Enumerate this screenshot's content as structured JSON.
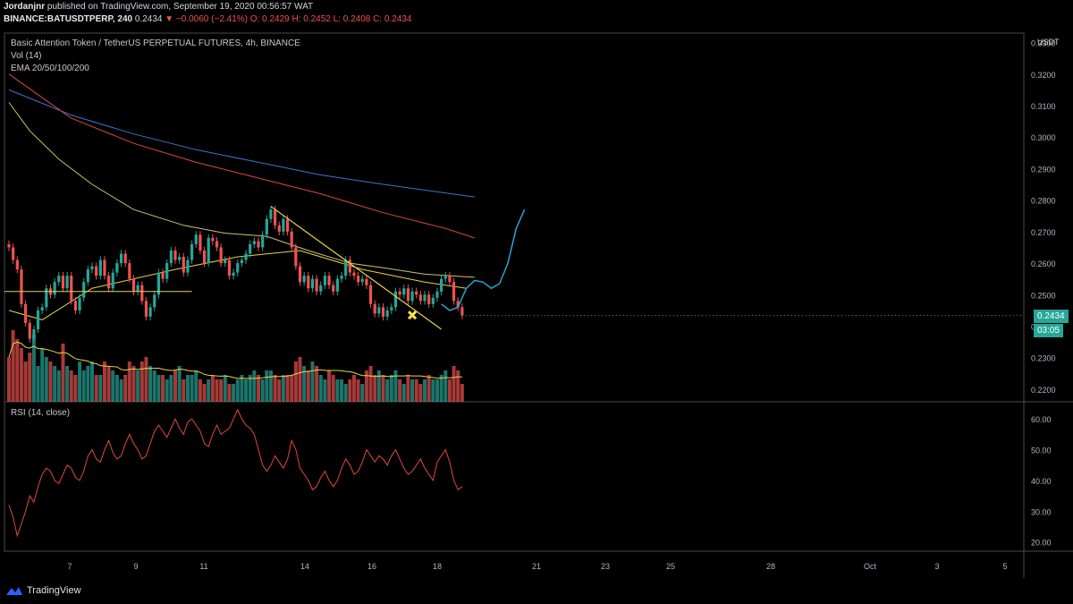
{
  "header": {
    "publisher": "Jordanjnr",
    "published_text": "published on TradingView.com, September 19, 2020 00:56:57 WAT",
    "symbol_line": "BINANCE:BATUSDTPERP, 240",
    "last_price": "0.2434",
    "change": "▼ −0.0060 (−2.41%)",
    "ohlc": "O: 0.2429  H: 0.2452  L: 0.2408  C: 0.2434"
  },
  "legend": {
    "title": "Basic Attention Token / TetherUS PERPETUAL FUTURES, 4h, BINANCE",
    "vol": "Vol (14)",
    "ema": "EMA 20/50/100/200",
    "rsi": "RSI (14, close)"
  },
  "price_axis": {
    "currency": "USDT",
    "ticks": [
      "0.3300",
      "0.3200",
      "0.3100",
      "0.3000",
      "0.2900",
      "0.2800",
      "0.2700",
      "0.2600",
      "0.2500",
      "0.2400",
      "0.2300",
      "0.2200"
    ],
    "last_price_tag": "0.2434",
    "countdown_tag": "03:05"
  },
  "rsi_axis": {
    "ticks": [
      "60.00",
      "50.00",
      "40.00",
      "30.00",
      "20.00"
    ]
  },
  "time_axis": {
    "ticks": [
      "7",
      "9",
      "11",
      "14",
      "16",
      "18",
      "21",
      "23",
      "25",
      "28",
      "Oct",
      "3",
      "5"
    ]
  },
  "footer": {
    "logo_text": "TradingView"
  },
  "colors": {
    "up": "#26a69a",
    "down": "#ef5350",
    "ema20": "#e9d349",
    "ema50": "#cfc174",
    "ema100": "#e2483d",
    "ema200": "#3a78c9",
    "rsi": "#e2483d",
    "projection": "#2aa3d3",
    "trendline": "#e9d349",
    "marker": "#f7e64a"
  },
  "chart_data": {
    "type": "candlestick",
    "title": "Basic Attention Token / TetherUS PERPETUAL FUTURES, 4h, BINANCE",
    "ylim": [
      0.216,
      0.333
    ],
    "rsi_ylim": [
      17,
      65
    ],
    "candles_close": [
      0.265,
      0.261,
      0.258,
      0.247,
      0.241,
      0.236,
      0.239,
      0.245,
      0.246,
      0.252,
      0.25,
      0.254,
      0.256,
      0.252,
      0.256,
      0.248,
      0.245,
      0.249,
      0.254,
      0.258,
      0.259,
      0.256,
      0.261,
      0.256,
      0.252,
      0.257,
      0.26,
      0.263,
      0.26,
      0.255,
      0.251,
      0.253,
      0.248,
      0.243,
      0.246,
      0.25,
      0.257,
      0.255,
      0.26,
      0.264,
      0.261,
      0.262,
      0.257,
      0.261,
      0.266,
      0.269,
      0.264,
      0.26,
      0.268,
      0.267,
      0.265,
      0.26,
      0.261,
      0.256,
      0.257,
      0.26,
      0.261,
      0.263,
      0.266,
      0.267,
      0.265,
      0.269,
      0.274,
      0.277,
      0.272,
      0.27,
      0.274,
      0.27,
      0.265,
      0.259,
      0.254,
      0.256,
      0.252,
      0.255,
      0.251,
      0.253,
      0.256,
      0.253,
      0.251,
      0.255,
      0.256,
      0.261,
      0.257,
      0.256,
      0.254,
      0.255,
      0.253,
      0.247,
      0.244,
      0.246,
      0.243,
      0.245,
      0.246,
      0.251,
      0.25,
      0.252,
      0.248,
      0.251,
      0.25,
      0.248,
      0.25,
      0.247,
      0.249,
      0.251,
      0.255,
      0.256,
      0.254,
      0.248,
      0.246,
      0.2434
    ],
    "volume": [
      1.0,
      1.6,
      1.4,
      1.2,
      0.9,
      1.1,
      1.5,
      0.8,
      1.2,
      1.0,
      0.9,
      0.8,
      0.7,
      1.3,
      0.8,
      0.7,
      0.6,
      0.9,
      0.7,
      0.8,
      0.9,
      0.6,
      0.6,
      0.9,
      0.8,
      0.7,
      0.6,
      0.5,
      0.6,
      0.9,
      0.8,
      0.7,
      0.9,
      1.0,
      0.8,
      0.7,
      0.6,
      0.6,
      0.5,
      0.6,
      0.7,
      0.8,
      0.5,
      0.6,
      0.6,
      0.7,
      0.5,
      0.4,
      0.5,
      0.6,
      0.5,
      0.5,
      0.6,
      0.4,
      0.4,
      0.5,
      0.6,
      0.5,
      0.6,
      0.7,
      0.6,
      0.5,
      0.7,
      0.7,
      0.6,
      0.5,
      0.6,
      0.6,
      0.6,
      0.9,
      1.0,
      0.8,
      0.7,
      0.9,
      0.8,
      0.6,
      0.5,
      0.7,
      0.6,
      0.5,
      0.5,
      0.4,
      0.5,
      0.6,
      0.5,
      0.4,
      0.7,
      0.8,
      0.6,
      0.7,
      0.6,
      0.5,
      0.6,
      0.7,
      0.5,
      0.4,
      0.6,
      0.5,
      0.5,
      0.4,
      0.5,
      0.6,
      0.5,
      0.5,
      0.6,
      0.7,
      0.5,
      0.8,
      0.7,
      0.4
    ],
    "ema20": [
      [
        0,
        0.245
      ],
      [
        8,
        0.242
      ],
      [
        20,
        0.252
      ],
      [
        40,
        0.258
      ],
      [
        55,
        0.262
      ],
      [
        70,
        0.264
      ],
      [
        85,
        0.258
      ],
      [
        100,
        0.254
      ],
      [
        110,
        0.252
      ]
    ],
    "ema50": [
      [
        0,
        0.311
      ],
      [
        5,
        0.302
      ],
      [
        12,
        0.293
      ],
      [
        20,
        0.285
      ],
      [
        30,
        0.277
      ],
      [
        42,
        0.272
      ],
      [
        52,
        0.2695
      ],
      [
        62,
        0.2685
      ],
      [
        72,
        0.264
      ],
      [
        82,
        0.26
      ],
      [
        90,
        0.2585
      ],
      [
        100,
        0.2565
      ],
      [
        112,
        0.2555
      ]
    ],
    "ema100": [
      [
        0,
        0.32
      ],
      [
        15,
        0.306
      ],
      [
        30,
        0.298
      ],
      [
        45,
        0.292
      ],
      [
        60,
        0.287
      ],
      [
        75,
        0.282
      ],
      [
        90,
        0.276
      ],
      [
        105,
        0.271
      ],
      [
        112,
        0.268
      ]
    ],
    "ema200": [
      [
        0,
        0.315
      ],
      [
        15,
        0.307
      ],
      [
        30,
        0.301
      ],
      [
        45,
        0.296
      ],
      [
        60,
        0.292
      ],
      [
        75,
        0.288
      ],
      [
        90,
        0.285
      ],
      [
        112,
        0.281
      ]
    ],
    "horizontal_level": 0.251,
    "trendline": [
      [
        63,
        0.278
      ],
      [
        104,
        0.239
      ]
    ],
    "projection": [
      [
        104,
        0.247
      ],
      [
        106,
        0.245
      ],
      [
        108,
        0.246
      ],
      [
        110,
        0.252
      ],
      [
        112,
        0.2545
      ],
      [
        114,
        0.254
      ],
      [
        116,
        0.252
      ],
      [
        118,
        0.2535
      ],
      [
        120,
        0.26
      ],
      [
        122,
        0.271
      ],
      [
        124,
        0.277
      ]
    ],
    "marker": [
      97,
      0.2435
    ],
    "rsi": [
      32,
      28,
      22,
      26,
      30,
      35,
      33,
      38,
      42,
      44,
      43,
      40,
      39,
      42,
      45,
      44,
      41,
      40,
      43,
      48,
      50,
      47,
      46,
      50,
      53,
      49,
      47,
      48,
      52,
      55,
      52,
      50,
      47,
      48,
      52,
      56,
      58,
      56,
      54,
      57,
      60,
      57,
      55,
      59,
      60,
      58,
      56,
      52,
      51,
      55,
      58,
      55,
      56,
      57,
      60,
      63,
      60,
      58,
      57,
      55,
      50,
      45,
      43,
      45,
      48,
      46,
      44,
      47,
      53,
      50,
      44,
      42,
      40,
      37,
      38,
      41,
      43,
      40,
      38,
      40,
      44,
      47,
      45,
      42,
      43,
      46,
      50,
      48,
      46,
      48,
      47,
      45,
      48,
      50,
      47,
      44,
      42,
      43,
      45,
      47,
      44,
      42,
      40,
      46,
      48,
      50,
      46,
      40,
      37,
      38
    ]
  }
}
